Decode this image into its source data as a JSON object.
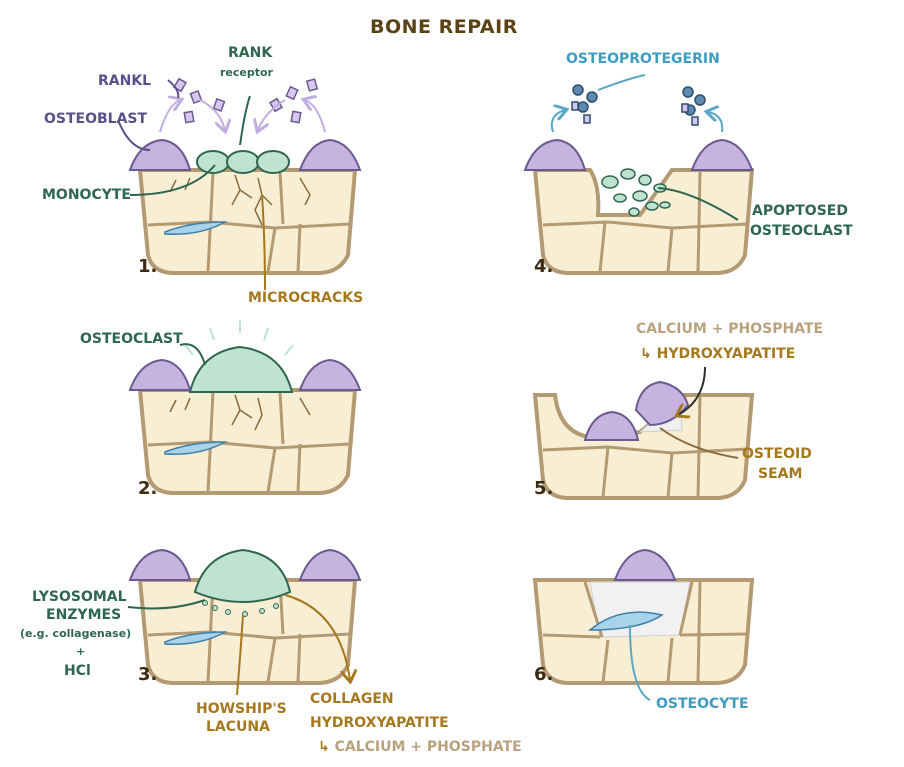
{
  "title": "BONE REPAIR",
  "steps": [
    "1.",
    "2.",
    "3.",
    "4.",
    "5.",
    "6."
  ],
  "labels": {
    "rankl": "RANKL",
    "rank": "RANK",
    "receptor": "receptor",
    "osteoblast": "OSTEOBLAST",
    "monocyte": "MONOCYTE",
    "microcracks": "MICROCRACKS",
    "osteoclast": "OSTEOCLAST",
    "lysosomal_1": "LYSOSOMAL",
    "lysosomal_2": "ENZYMES",
    "collagenase": "(e.g. collagenase)",
    "plus": "+",
    "hcl": "HCl",
    "howships_1": "HOWSHIP'S",
    "howships_2": "LACUNA",
    "collagen": "COLLAGEN",
    "hydroxyapatite_3": "HYDROXYAPATITE",
    "calcium_phosphate_3": "CALCIUM + PHOSPHATE",
    "osteoprotegerin": "OSTEOPROTEGERIN",
    "apoptosed_1": "APOPTOSED",
    "apoptosed_2": "OSTEOCLAST",
    "calcium_phosphate_5": "CALCIUM + PHOSPHATE",
    "hydroxyapatite_5": "HYDROXYAPATITE",
    "osteoid_1": "OSTEOID",
    "osteoid_2": "SEAM",
    "osteocyte": "OSTEOCYTE"
  },
  "colors": {
    "bone_fill": "#f7eed3",
    "bone_outline": "#b39a72",
    "osteoblast": "#c6b3e0",
    "monocyte": "#bfe3d0",
    "osteoclast": "#bfe3d0",
    "osteocyte": "#a9d3ea",
    "crack": "#8a6a3a",
    "arrow_purple": "#c0aee0",
    "arrow_green": "#2f6650",
    "arrow_gold": "#a6781e",
    "arrow_blue": "#5aa8c8"
  }
}
